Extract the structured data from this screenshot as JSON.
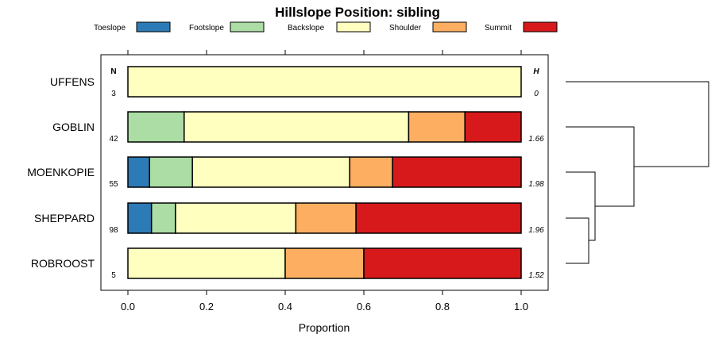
{
  "chart_data": {
    "type": "bar",
    "orientation": "horizontal-stacked",
    "title": "Hillslope Position: sibling",
    "xlabel": "Proportion",
    "ylabel": "",
    "xlim": [
      0,
      1
    ],
    "x_ticks": [
      "0.0",
      "0.2",
      "0.4",
      "0.6",
      "0.8",
      "1.0"
    ],
    "legend_placement": "top",
    "n_header": "N",
    "h_header": "H",
    "legend": [
      {
        "name": "Toeslope",
        "color": "#2c7bb6"
      },
      {
        "name": "Footslope",
        "color": "#abdda4"
      },
      {
        "name": "Backslope",
        "color": "#ffffbf"
      },
      {
        "name": "Shoulder",
        "color": "#fdae61"
      },
      {
        "name": "Summit",
        "color": "#d7191c"
      }
    ],
    "categories": [
      "UFFENS",
      "GOBLIN",
      "MOENKOPIE",
      "SHEPPARD",
      "ROBROOST"
    ],
    "n": [
      "3",
      "42",
      "55",
      "98",
      "5"
    ],
    "h": [
      "0",
      "1.66",
      "1.98",
      "1.96",
      "1.52"
    ],
    "series": [
      {
        "name": "Toeslope",
        "values": [
          0,
          0,
          0.055,
          0.06,
          0
        ]
      },
      {
        "name": "Footslope",
        "values": [
          0,
          0.143,
          0.109,
          0.061,
          0
        ]
      },
      {
        "name": "Backslope",
        "values": [
          1,
          0.571,
          0.4,
          0.306,
          0.4
        ]
      },
      {
        "name": "Shoulder",
        "values": [
          0,
          0.143,
          0.109,
          0.153,
          0.2
        ]
      },
      {
        "name": "Summit",
        "values": [
          0,
          0.143,
          0.327,
          0.42,
          0.4
        ]
      }
    ],
    "dendrogram": "hierarchical clustering of categories shown at right"
  }
}
